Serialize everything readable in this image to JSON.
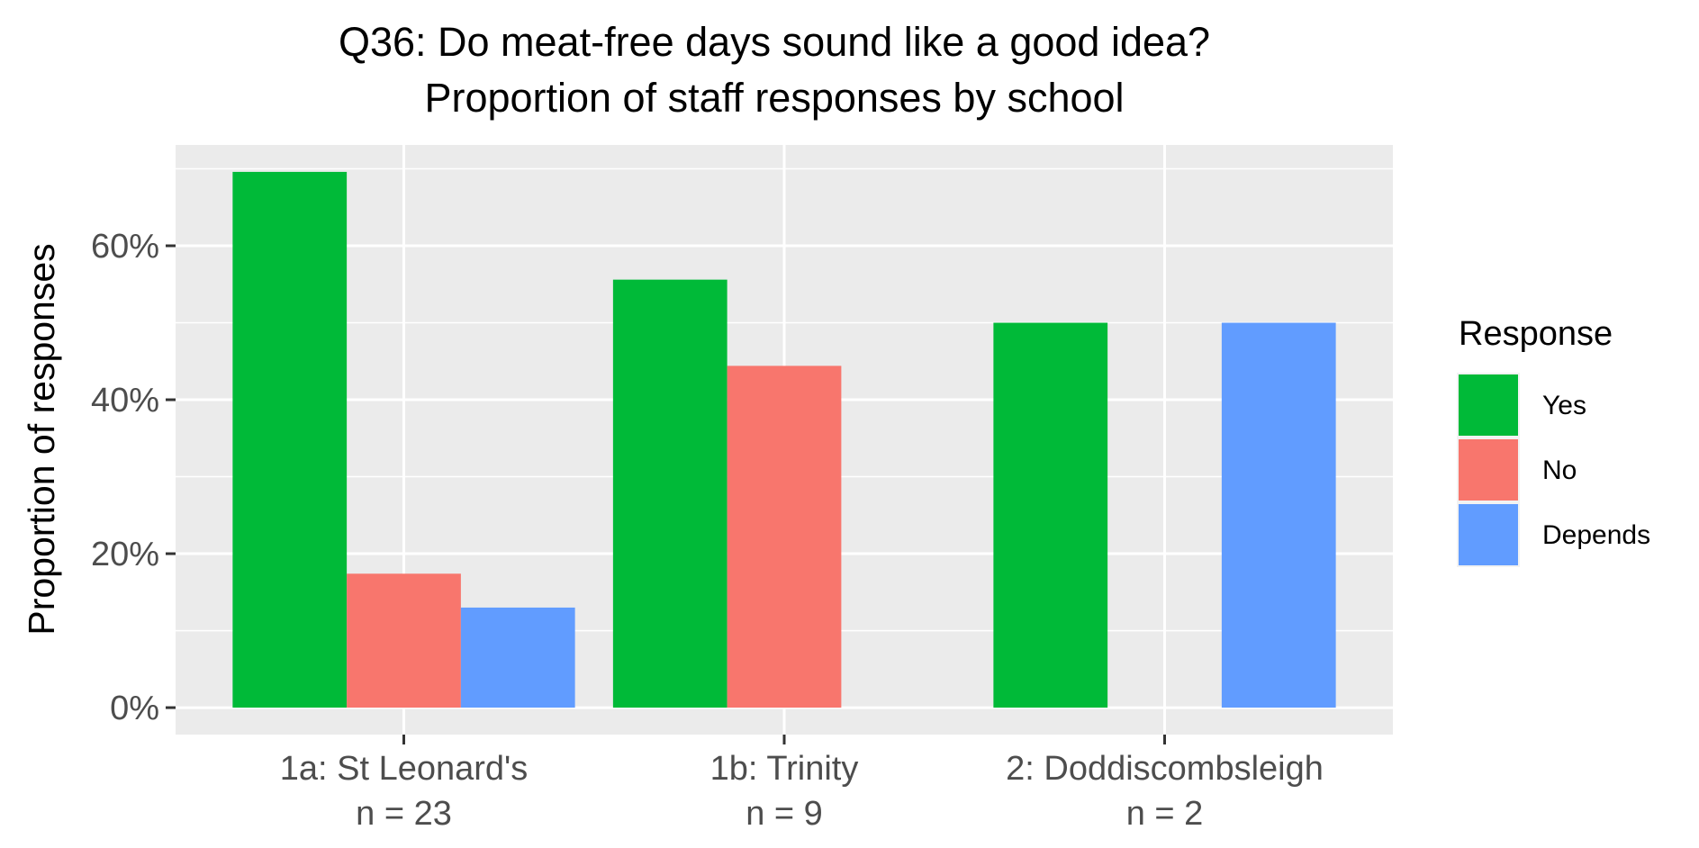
{
  "chart_data": {
    "type": "bar",
    "title": "Q36: Do meat-free days sound like a good idea?",
    "subtitle": "Proportion of staff responses by school",
    "xlabel": "",
    "ylabel": "Proportion of responses",
    "categories": [
      [
        "1a: St Leonard's",
        "n = 23"
      ],
      [
        "1b: Trinity",
        "n = 9"
      ],
      [
        "2: Doddiscombsleigh",
        "n = 2"
      ]
    ],
    "series": [
      {
        "name": "Yes",
        "color": "#00BA38",
        "values": [
          69.6,
          55.6,
          50.0
        ]
      },
      {
        "name": "No",
        "color": "#F8766D",
        "values": [
          17.4,
          44.4,
          null
        ]
      },
      {
        "name": "Depends",
        "color": "#619CFF",
        "values": [
          13.0,
          null,
          50.0
        ]
      }
    ],
    "yticks": [
      0,
      20,
      40,
      60
    ],
    "ytick_labels": [
      "0%",
      "20%",
      "40%",
      "60%"
    ],
    "ylim": [
      -3.5,
      73.1
    ],
    "grid": true,
    "legend": {
      "title": "Response",
      "placement": "right"
    },
    "panel_background": "#EBEBEB",
    "grid_color": "#FFFFFF"
  }
}
